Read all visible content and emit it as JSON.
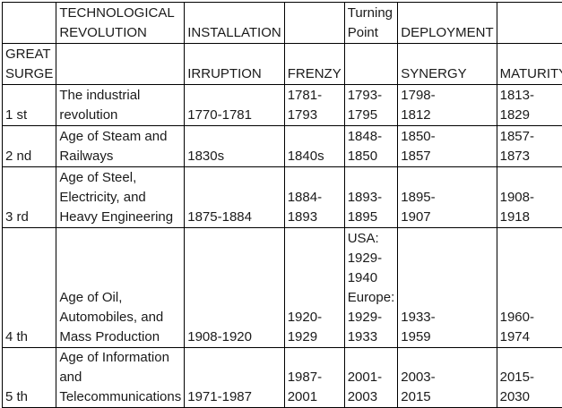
{
  "table": {
    "header_rows": [
      [
        "",
        "TECHNOLOGICAL\nREVOLUTION",
        "INSTALLATION",
        "",
        "Turning\nPoint",
        "DEPLOYMENT",
        ""
      ],
      [
        "GREAT\nSURGE",
        "",
        "IRRUPTION",
        "FRENZY",
        "",
        "SYNERGY",
        "MATURITY"
      ]
    ],
    "rows": [
      [
        "1 st",
        "The industrial\nrevolution",
        "1770-1781",
        "1781-\n1793",
        "1793-\n1795",
        "1798-\n1812",
        "1813-\n1829"
      ],
      [
        "2 nd",
        "Age of Steam and\nRailways",
        "1830s",
        "1840s",
        "1848-\n1850",
        "1850-\n1857",
        "1857-\n1873"
      ],
      [
        "3 rd",
        "Age of Steel,\nElectricity, and\nHeavy Engineering",
        "1875-1884",
        "1884-\n1893",
        "1893-\n1895",
        "1895-\n1907",
        "1908-\n1918"
      ],
      [
        "4 th",
        "Age of Oil,\nAutomobiles, and\nMass Production",
        "1908-1920",
        "1920-\n1929",
        "USA:\n1929-\n1940\nEurope:\n1929-\n1933",
        "1933-\n1959",
        "1960-\n1974"
      ],
      [
        "5 th",
        "Age of Information\nand\nTelecommunications",
        "1971-1987",
        "1987-\n2001",
        "2001-\n2003",
        "2003-\n2015",
        "2015-\n2030"
      ]
    ]
  }
}
